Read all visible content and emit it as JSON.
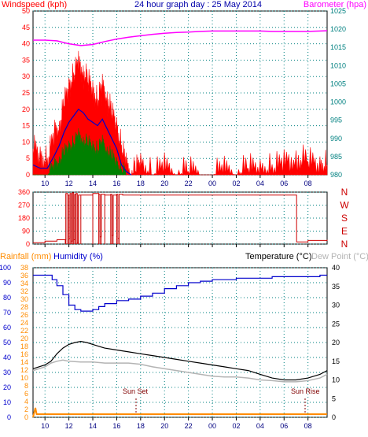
{
  "header": {
    "windspeed_label": "Windspeed (kph)",
    "title": "24 hour graph day : 25 May 2014",
    "barometer_label": "Barometer (hpa)"
  },
  "lower_header": {
    "rainfall_label": "Rainfall (mm)",
    "humidity_label": "Humidity (%)",
    "temperature_label": "Temperature (°C)",
    "dewpoint_label": "Dew Point (°C)"
  },
  "annotations": {
    "sun_set": "Sun Set",
    "sun_rise": "Sun Rise"
  },
  "colors": {
    "windspeed": "#ff0000",
    "wind_avg": "#0000cc",
    "wind_low": "#008000",
    "barometer": "#ff00ff",
    "direction": "#cc0000",
    "humidity": "#0000cc",
    "temperature": "#000000",
    "dewpoint": "#b4b4b4",
    "rainfall": "#ff8c00",
    "axis_left": "#ff0000",
    "axis_right": "#008080",
    "grid": "#008080"
  },
  "chart_data": [
    {
      "type": "area",
      "name": "wind-barometer",
      "x_ticks": [
        "10",
        "12",
        "14",
        "16",
        "18",
        "20",
        "22",
        "00",
        "02",
        "04",
        "06",
        "08"
      ],
      "x_range": [
        9.0,
        33.6
      ],
      "ylim_left": [
        0,
        50
      ],
      "yticks_left": [
        0,
        5,
        10,
        15,
        20,
        25,
        30,
        35,
        40,
        45,
        50
      ],
      "ylim_right": [
        980,
        1025
      ],
      "yticks_right": [
        980,
        985,
        990,
        995,
        1000,
        1005,
        1010,
        1015,
        1020,
        1025
      ],
      "grid": true,
      "series": [
        {
          "name": "Windspeed",
          "x": [
            9.0,
            9.6,
            10.2,
            10.8,
            11.2,
            11.6,
            12.0,
            12.4,
            12.8,
            13.2,
            13.6,
            14.0,
            14.4,
            14.8,
            15.2,
            15.6,
            16.0,
            16.4,
            16.8,
            17.2,
            17.6,
            18.0,
            19.0,
            20.0,
            21.0,
            22.0,
            23.0,
            24.0,
            25.0,
            26.0,
            27.0,
            28.0,
            29.0,
            30.0,
            31.0,
            32.0,
            33.0,
            33.6
          ],
          "values": [
            8,
            5,
            4,
            12,
            14,
            21,
            26,
            30,
            33,
            31,
            28,
            25,
            22,
            26,
            23,
            18,
            14,
            8,
            2,
            0,
            1,
            3,
            0,
            2,
            0,
            1,
            0,
            0,
            1,
            0,
            2,
            1,
            2,
            3,
            5,
            4,
            2,
            3
          ]
        },
        {
          "name": "Wind average",
          "x": [
            9.0,
            9.6,
            10.2,
            10.8,
            11.2,
            11.6,
            12.0,
            12.4,
            12.8,
            13.2,
            13.6,
            14.0,
            14.4,
            14.8,
            15.2,
            15.6,
            16.0,
            16.4,
            16.8,
            17.2
          ],
          "values": [
            3,
            2,
            2,
            6,
            9,
            13,
            16,
            18,
            20,
            19,
            17,
            16,
            15,
            17,
            14,
            11,
            8,
            3,
            1,
            0
          ]
        },
        {
          "name": "Wind low",
          "x": [
            9.0,
            9.6,
            10.2,
            10.8,
            11.2,
            11.6,
            12.0,
            12.4,
            12.8,
            13.2,
            13.6,
            14.0,
            14.4,
            14.8,
            15.2,
            15.6,
            16.0,
            16.4,
            16.8
          ],
          "values": [
            0,
            0,
            0,
            2,
            4,
            6,
            8,
            9,
            11,
            10,
            9,
            8,
            7,
            9,
            7,
            5,
            3,
            1,
            0
          ]
        },
        {
          "name": "Barometer",
          "x": [
            9.0,
            10.0,
            11.0,
            12.0,
            13.0,
            14.0,
            15.0,
            16.0,
            17.0,
            18.0,
            19.0,
            20.0,
            21.0,
            22.0,
            23.0,
            24.0,
            25.0,
            26.0,
            27.0,
            28.0,
            29.0,
            30.0,
            31.0,
            32.0,
            33.0,
            33.6
          ],
          "values": [
            1017,
            1017,
            1016.8,
            1016,
            1015.5,
            1015.8,
            1016.6,
            1017.3,
            1017.8,
            1018.2,
            1018.6,
            1018.9,
            1019.1,
            1019.2,
            1019.4,
            1019.5,
            1019.5,
            1019.5,
            1019.5,
            1019.5,
            1019.4,
            1019.4,
            1019.4,
            1019.4,
            1019.5,
            1019.6
          ]
        }
      ]
    },
    {
      "type": "line",
      "name": "wind-direction",
      "x_ticks": [
        "10",
        "12",
        "14",
        "16",
        "18",
        "20",
        "22",
        "00",
        "02",
        "04",
        "06",
        "08"
      ],
      "x_range": [
        9.0,
        33.6
      ],
      "ylim": [
        0,
        360
      ],
      "yticks": [
        0,
        90,
        180,
        270,
        360
      ],
      "compass_labels": [
        "N",
        "W",
        "S",
        "E",
        "N"
      ],
      "grid": true,
      "series": [
        {
          "name": "Wind direction",
          "x": [
            9.0,
            10.0,
            11.0,
            11.7,
            11.75,
            11.9,
            12.0,
            12.1,
            12.2,
            12.3,
            12.4,
            12.5,
            12.6,
            12.7,
            12.8,
            13.0,
            14.0,
            14.5,
            14.6,
            14.7,
            15.0,
            15.5,
            15.6,
            15.7,
            16.0,
            16.1,
            16.2,
            16.5,
            17.0,
            20.0,
            24.0,
            28.0,
            31.0,
            31.05,
            32.0,
            33.6
          ],
          "values": [
            10,
            20,
            30,
            30,
            350,
            340,
            40,
            350,
            20,
            355,
            30,
            345,
            350,
            10,
            340,
            340,
            350,
            345,
            50,
            345,
            340,
            345,
            60,
            340,
            345,
            40,
            345,
            340,
            340,
            340,
            340,
            340,
            340,
            15,
            25,
            30
          ]
        }
      ]
    },
    {
      "type": "line",
      "name": "temperature-humidity-rain",
      "x_ticks": [
        "10",
        "12",
        "14",
        "16",
        "18",
        "20",
        "22",
        "00",
        "02",
        "04",
        "06",
        "08"
      ],
      "x_range": [
        9.0,
        33.6
      ],
      "ylim_left_humidity": [
        0,
        100
      ],
      "yticks_humidity": [
        0,
        10,
        20,
        30,
        40,
        50,
        60,
        70,
        80,
        90,
        100
      ],
      "ylim_left_rain": [
        0,
        38
      ],
      "yticks_rain": [
        0,
        2,
        4,
        6,
        8,
        10,
        12,
        14,
        16,
        18,
        20,
        22,
        24,
        26,
        28,
        30,
        32,
        34,
        36,
        38
      ],
      "ylim_right": [
        0,
        40
      ],
      "yticks_right": [
        0,
        5,
        10,
        15,
        20,
        25,
        30,
        35,
        40
      ],
      "grid": true,
      "series": [
        {
          "name": "Humidity",
          "x": [
            9.0,
            10.0,
            10.6,
            11.0,
            11.5,
            12.0,
            12.5,
            13.0,
            13.5,
            14.0,
            14.5,
            15.0,
            16.0,
            17.0,
            18.0,
            19.0,
            20.0,
            21.0,
            22.0,
            23.0,
            24.0,
            25.0,
            26.0,
            27.0,
            28.0,
            29.0,
            30.0,
            31.0,
            32.0,
            33.0,
            33.6
          ],
          "values": [
            95,
            95,
            92,
            88,
            82,
            75,
            72,
            71,
            71,
            72,
            74,
            76,
            78,
            79,
            81,
            83,
            86,
            88,
            90,
            91,
            92,
            92,
            93,
            93,
            93,
            94,
            94,
            94,
            94,
            95,
            95
          ]
        },
        {
          "name": "Temperature",
          "x": [
            9.0,
            10.0,
            10.5,
            11.0,
            11.5,
            12.0,
            12.5,
            13.0,
            13.5,
            14.0,
            14.5,
            15.0,
            16.0,
            17.0,
            18.0,
            19.0,
            20.0,
            21.0,
            22.0,
            23.0,
            24.0,
            25.0,
            26.0,
            27.0,
            28.0,
            29.0,
            30.0,
            31.0,
            32.0,
            33.0,
            33.6
          ],
          "values": [
            13.0,
            14.0,
            15.0,
            17.0,
            18.5,
            19.5,
            20.0,
            20.3,
            20.0,
            19.5,
            19.0,
            18.5,
            18.0,
            17.5,
            17.0,
            16.5,
            16.0,
            15.5,
            15.0,
            14.5,
            14.0,
            13.5,
            13.0,
            12.5,
            11.5,
            10.5,
            10.0,
            10.0,
            10.5,
            11.5,
            12.5
          ]
        },
        {
          "name": "Dew Point",
          "x": [
            9.0,
            10.0,
            10.5,
            11.0,
            11.5,
            12.0,
            13.0,
            14.0,
            15.0,
            16.0,
            17.0,
            18.0,
            19.0,
            20.0,
            21.0,
            22.0,
            23.0,
            24.0,
            25.0,
            26.0,
            27.0,
            28.0,
            29.0,
            30.0,
            31.0,
            32.0,
            33.0,
            33.6
          ],
          "values": [
            12.5,
            13.5,
            14.5,
            15.0,
            15.3,
            15.0,
            14.8,
            14.8,
            14.5,
            14.5,
            14.5,
            14.2,
            13.5,
            13.0,
            12.5,
            12.0,
            11.5,
            11.0,
            10.8,
            10.8,
            10.5,
            10.0,
            9.8,
            9.5,
            9.5,
            9.8,
            10.5,
            11.5
          ]
        },
        {
          "name": "Rainfall",
          "x": [
            9.0,
            9.2,
            9.3,
            10.0,
            16.0,
            24.0,
            32.0,
            33.6
          ],
          "values": [
            0,
            2.4,
            0.8,
            0.8,
            0.8,
            0.8,
            0.8,
            0.8
          ]
        }
      ]
    }
  ]
}
